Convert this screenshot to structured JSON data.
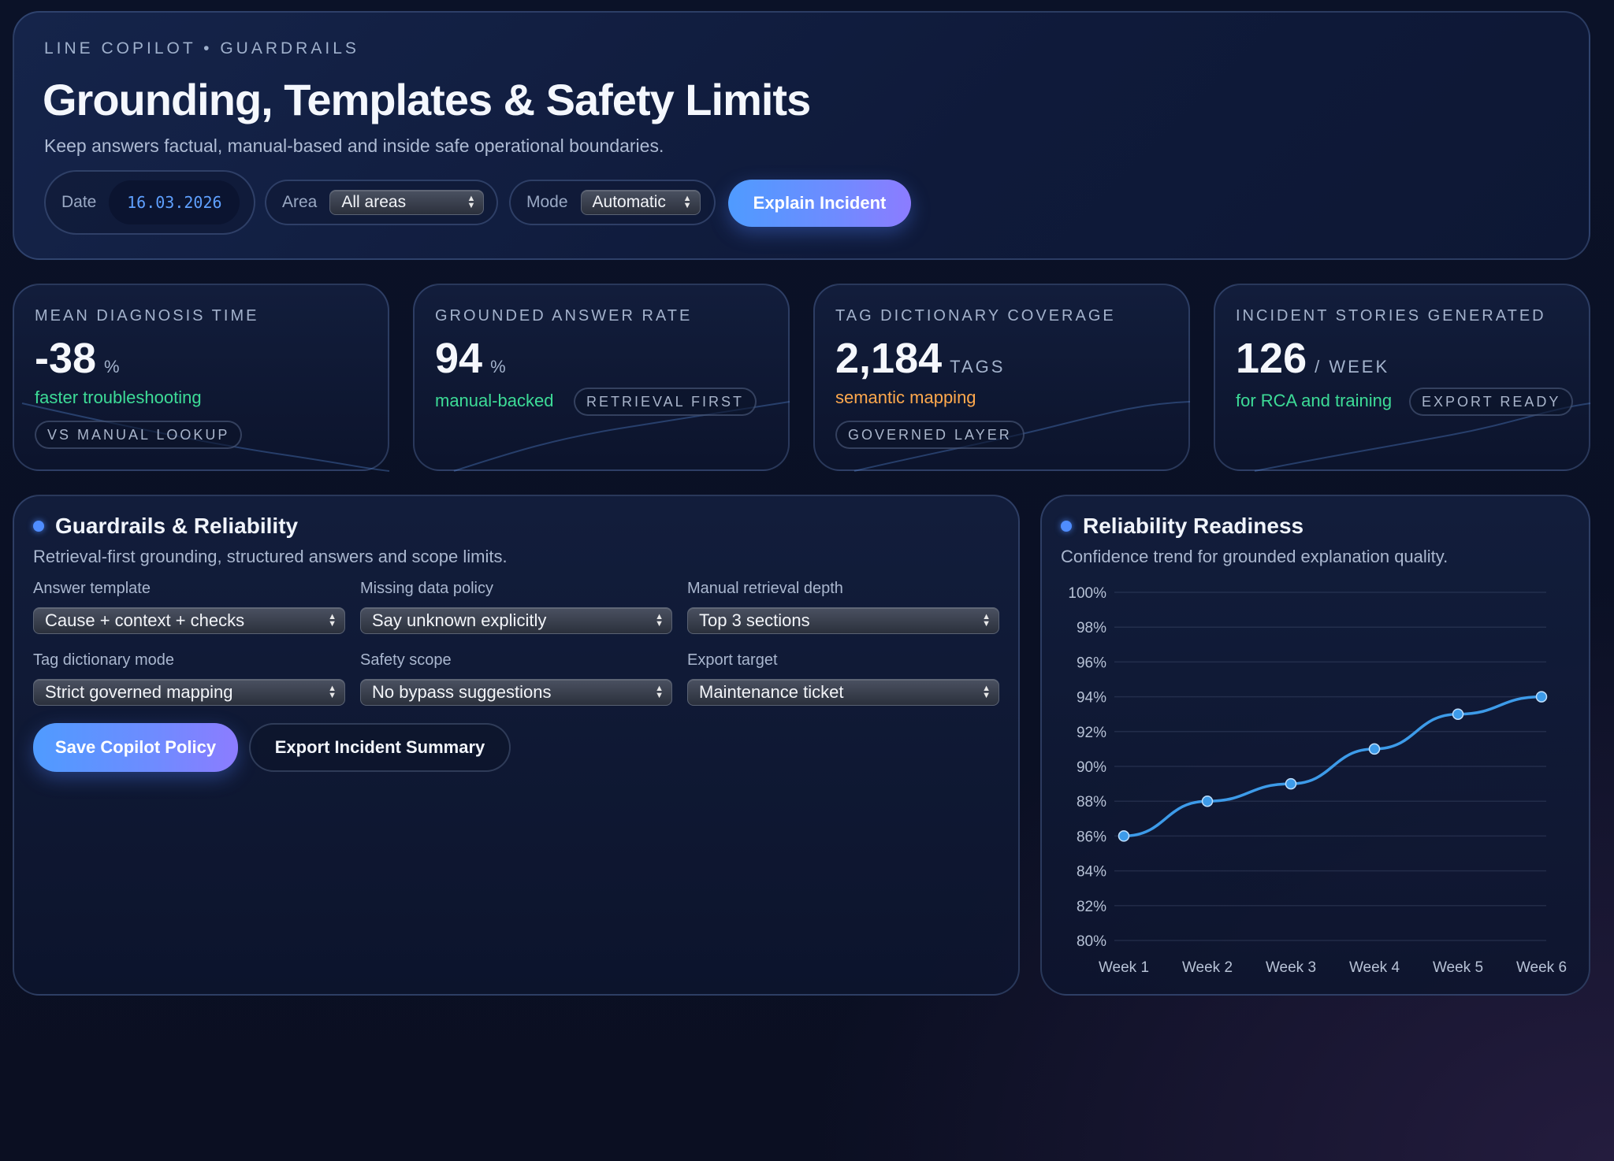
{
  "header": {
    "eyebrow": "LINE COPILOT • GUARDRAILS",
    "title": "Grounding, Templates & Safety Limits",
    "subtitle": "Keep answers factual, manual-based and inside safe operational boundaries.",
    "date_label": "Date",
    "date_value": "16.03.2026",
    "area_label": "Area",
    "area_value": "All areas",
    "mode_label": "Mode",
    "mode_value": "Automatic",
    "explain_button": "Explain Incident"
  },
  "kpis": [
    {
      "label": "MEAN DIAGNOSIS TIME",
      "value": "-38",
      "unit": "%",
      "note": "faster troubleshooting",
      "note_color": "#3ddc97",
      "tag": "VS MANUAL LOOKUP",
      "trend": "down"
    },
    {
      "label": "GROUNDED ANSWER RATE",
      "value": "94",
      "unit": "%",
      "note": "manual-backed",
      "note_color": "#3ddc97",
      "tag": "RETRIEVAL FIRST",
      "trend": "up"
    },
    {
      "label": "TAG DICTIONARY COVERAGE",
      "value": "2,184",
      "unit": "TAGS",
      "note": "semantic mapping",
      "note_color": "#ffa94d",
      "tag": "GOVERNED LAYER",
      "trend": "up"
    },
    {
      "label": "INCIDENT STORIES GENERATED",
      "value": "126",
      "unit": "/ WEEK",
      "note": "for RCA and training",
      "note_color": "#3ddc97",
      "tag": "EXPORT READY",
      "trend": "up"
    }
  ],
  "guardrails": {
    "title": "Guardrails & Reliability",
    "subtitle": "Retrieval-first grounding, structured answers and scope limits.",
    "fields": [
      {
        "label": "Answer template",
        "value": "Cause + context + checks"
      },
      {
        "label": "Missing data policy",
        "value": "Say unknown explicitly"
      },
      {
        "label": "Manual retrieval depth",
        "value": "Top 3 sections"
      },
      {
        "label": "Tag dictionary mode",
        "value": "Strict governed mapping"
      },
      {
        "label": "Safety scope",
        "value": "No bypass suggestions"
      },
      {
        "label": "Export target",
        "value": "Maintenance ticket"
      }
    ],
    "save_button": "Save Copilot Policy",
    "export_button": "Export Incident Summary"
  },
  "reliability": {
    "title": "Reliability Readiness",
    "subtitle": "Confidence trend for grounded explanation quality."
  },
  "chart_data": {
    "type": "line",
    "categories": [
      "Week 1",
      "Week 2",
      "Week 3",
      "Week 4",
      "Week 5",
      "Week 6"
    ],
    "series": [
      {
        "values": [
          86,
          88,
          89,
          91,
          93,
          94
        ],
        "color": "#3d9be9"
      }
    ],
    "ylim": [
      80,
      100
    ],
    "yticks": [
      80,
      82,
      84,
      86,
      88,
      90,
      92,
      94,
      96,
      98,
      100
    ],
    "ytick_suffix": "%",
    "grid": true
  }
}
